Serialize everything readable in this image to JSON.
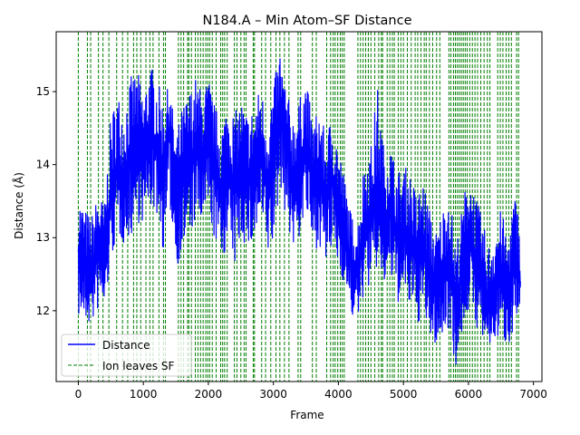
{
  "chart_data": {
    "type": "line",
    "title": "N184.A – Min Atom–SF Distance",
    "xlabel": "Frame",
    "ylabel": "Distance (Å)",
    "xlim": [
      -340,
      7130
    ],
    "ylim": [
      11.03,
      15.82
    ],
    "xticks": [
      0,
      1000,
      2000,
      3000,
      4000,
      5000,
      6000,
      7000
    ],
    "yticks": [
      12,
      13,
      14,
      15
    ],
    "grid": false,
    "legend_position": "lower-left",
    "legend": [
      {
        "name": "Distance",
        "color": "#0000ff",
        "style": "solid"
      },
      {
        "name": "Ion leaves SF",
        "color": "#008000",
        "style": "dashed"
      }
    ],
    "series": [
      {
        "name": "Distance",
        "color": "#0000ff",
        "x": [
          0,
          100,
          200,
          300,
          400,
          500,
          600,
          700,
          800,
          900,
          1000,
          1100,
          1200,
          1300,
          1400,
          1500,
          1600,
          1700,
          1800,
          1900,
          2000,
          2100,
          2200,
          2300,
          2400,
          2500,
          2600,
          2700,
          2800,
          2900,
          3000,
          3100,
          3200,
          3300,
          3400,
          3500,
          3600,
          3700,
          3800,
          3900,
          4000,
          4100,
          4200,
          4300,
          4400,
          4500,
          4600,
          4700,
          4800,
          4900,
          5000,
          5100,
          5200,
          5300,
          5400,
          5500,
          5600,
          5700,
          5800,
          5900,
          6000,
          6100,
          6200,
          6300,
          6400,
          6500,
          6600,
          6700,
          6800
        ],
        "y": [
          12.8,
          12.6,
          12.5,
          12.9,
          12.7,
          13.6,
          14.0,
          13.8,
          14.1,
          14.3,
          14.0,
          14.4,
          14.2,
          13.9,
          14.5,
          13.5,
          13.9,
          14.0,
          14.2,
          14.1,
          14.3,
          13.9,
          13.6,
          13.9,
          13.7,
          14.0,
          13.8,
          13.9,
          14.2,
          13.7,
          14.1,
          14.7,
          14.2,
          13.8,
          14.0,
          14.3,
          13.7,
          13.9,
          13.5,
          13.8,
          13.4,
          13.0,
          12.6,
          12.5,
          13.2,
          13.3,
          13.6,
          13.2,
          13.4,
          13.0,
          13.1,
          13.0,
          12.7,
          12.9,
          12.5,
          12.3,
          12.5,
          12.8,
          12.0,
          12.6,
          13.0,
          12.7,
          12.4,
          12.1,
          12.3,
          12.5,
          12.2,
          12.8,
          12.4
        ],
        "lower": [
          11.9,
          11.8,
          11.8,
          12.0,
          12.0,
          12.7,
          13.0,
          12.9,
          13.0,
          13.2,
          13.2,
          13.4,
          13.3,
          12.8,
          13.4,
          12.6,
          12.8,
          13.0,
          13.2,
          13.1,
          13.3,
          12.9,
          12.7,
          12.9,
          12.6,
          13.0,
          12.8,
          12.9,
          13.2,
          12.7,
          12.9,
          13.7,
          13.2,
          12.8,
          13.0,
          13.3,
          12.8,
          12.9,
          12.6,
          12.8,
          12.6,
          12.3,
          11.9,
          11.9,
          12.3,
          12.3,
          12.6,
          12.3,
          12.4,
          12.1,
          12.1,
          12.0,
          11.8,
          11.9,
          11.6,
          11.5,
          11.6,
          11.8,
          11.2,
          11.7,
          12.0,
          11.8,
          11.6,
          11.4,
          11.6,
          11.6,
          11.5,
          11.8,
          11.9
        ],
        "upper": [
          13.6,
          13.4,
          13.3,
          13.6,
          13.5,
          14.7,
          15.0,
          14.8,
          15.2,
          15.3,
          15.0,
          15.4,
          15.2,
          14.9,
          15.1,
          14.4,
          14.8,
          15.0,
          15.2,
          15.0,
          15.2,
          14.8,
          14.6,
          14.9,
          14.7,
          14.9,
          14.7,
          14.8,
          15.1,
          14.7,
          15.1,
          15.6,
          15.0,
          14.7,
          14.9,
          15.2,
          14.6,
          14.8,
          14.4,
          14.7,
          14.3,
          13.8,
          13.3,
          13.3,
          14.1,
          14.3,
          15.1,
          14.2,
          14.3,
          13.9,
          14.0,
          13.9,
          13.6,
          13.8,
          13.4,
          13.1,
          13.4,
          13.7,
          12.9,
          13.4,
          14.0,
          13.6,
          13.3,
          12.9,
          13.2,
          13.4,
          13.0,
          13.6,
          13.3
        ]
      }
    ],
    "events": {
      "name": "Ion leaves SF",
      "color": "#008000",
      "x": [
        0,
        140,
        190,
        310,
        380,
        470,
        590,
        680,
        760,
        850,
        900,
        960,
        1040,
        1100,
        1150,
        1240,
        1310,
        1340,
        1540,
        1580,
        1620,
        1680,
        1700,
        1740,
        1800,
        1840,
        1880,
        1920,
        1960,
        1990,
        2020,
        2060,
        2120,
        2190,
        2220,
        2250,
        2290,
        2400,
        2440,
        2500,
        2550,
        2580,
        2690,
        2710,
        2820,
        2880,
        2960,
        3040,
        3100,
        3170,
        3240,
        3380,
        3420,
        3600,
        3660,
        3820,
        3880,
        3920,
        3950,
        3990,
        4030,
        4060,
        4090,
        4300,
        4340,
        4380,
        4420,
        4460,
        4500,
        4560,
        4620,
        4660,
        4680,
        4750,
        4790,
        4830,
        4860,
        4920,
        4960,
        5000,
        5060,
        5120,
        5180,
        5220,
        5270,
        5320,
        5350,
        5400,
        5450,
        5510,
        5560,
        5700,
        5730,
        5770,
        5800,
        5830,
        5860,
        5890,
        5920,
        5950,
        5980,
        6020,
        6060,
        6100,
        6140,
        6190,
        6240,
        6290,
        6330,
        6450,
        6490,
        6530,
        6580,
        6620,
        6660,
        6740,
        6770
      ]
    }
  }
}
